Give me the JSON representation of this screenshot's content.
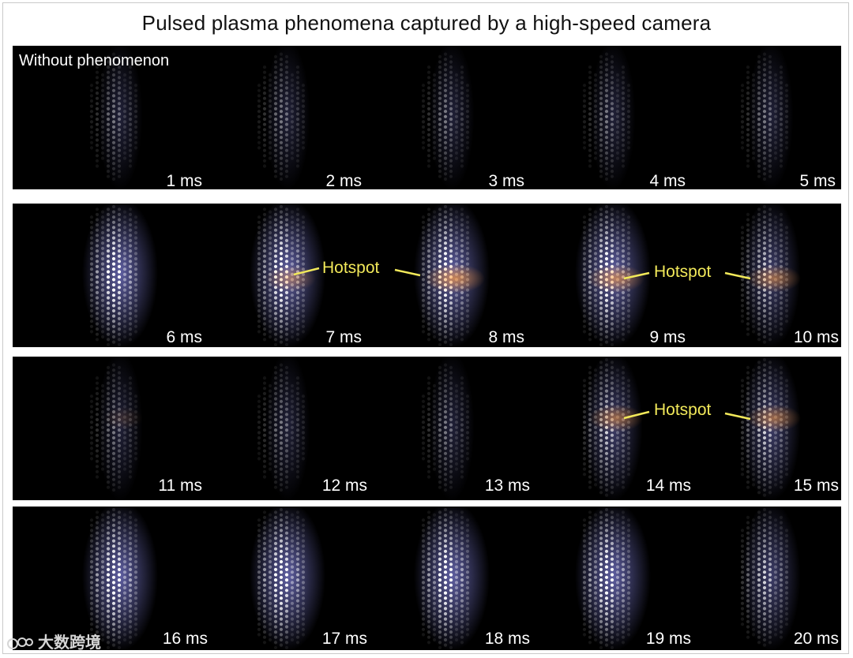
{
  "title": "Pulsed plasma phenomena captured by a high-speed camera",
  "watermark": "大数跨境",
  "strips": [
    {
      "note": "Without phenomenon",
      "frames": [
        {
          "label": "1 ms",
          "intensity": "dim",
          "hotspot": 0
        },
        {
          "label": "2 ms",
          "intensity": "dim",
          "hotspot": 0
        },
        {
          "label": "3 ms",
          "intensity": "dim",
          "hotspot": 0
        },
        {
          "label": "4 ms",
          "intensity": "dim",
          "hotspot": 0
        },
        {
          "label": "5 ms",
          "intensity": "dim",
          "hotspot": 0
        }
      ],
      "hotspot_labels": []
    },
    {
      "note": "",
      "frames": [
        {
          "label": "6 ms",
          "intensity": "bright",
          "hotspot": 0
        },
        {
          "label": "7 ms",
          "intensity": "bright",
          "hotspot": 0.5
        },
        {
          "label": "8 ms",
          "intensity": "bright",
          "hotspot": 0.8
        },
        {
          "label": "9 ms",
          "intensity": "bright",
          "hotspot": 0.7
        },
        {
          "label": "10 ms",
          "intensity": "medium",
          "hotspot": 0.6
        }
      ],
      "hotspot_labels": [
        "Hotspot",
        "Hotspot"
      ]
    },
    {
      "note": "",
      "frames": [
        {
          "label": "11 ms",
          "intensity": "dim",
          "hotspot": 0.15
        },
        {
          "label": "12 ms",
          "intensity": "dim",
          "hotspot": 0
        },
        {
          "label": "13 ms",
          "intensity": "dim",
          "hotspot": 0
        },
        {
          "label": "14 ms",
          "intensity": "medium",
          "hotspot": 0.6
        },
        {
          "label": "15 ms",
          "intensity": "medium",
          "hotspot": 0.6
        }
      ],
      "hotspot_labels": [
        "Hotspot"
      ]
    },
    {
      "note": "",
      "frames": [
        {
          "label": "16 ms",
          "intensity": "bright",
          "hotspot": 0
        },
        {
          "label": "17 ms",
          "intensity": "bright",
          "hotspot": 0
        },
        {
          "label": "18 ms",
          "intensity": "bright",
          "hotspot": 0
        },
        {
          "label": "19 ms",
          "intensity": "bright",
          "hotspot": 0
        },
        {
          "label": "20 ms",
          "intensity": "medium",
          "hotspot": 0
        }
      ],
      "hotspot_labels": []
    }
  ],
  "colors": {
    "background": "#000000",
    "dot": "#ffffff",
    "glow": "#7f7fd8",
    "hotspot": "#ff9a3a",
    "hotspot_label": "#f2e95a",
    "time_label": "#ffffff"
  }
}
